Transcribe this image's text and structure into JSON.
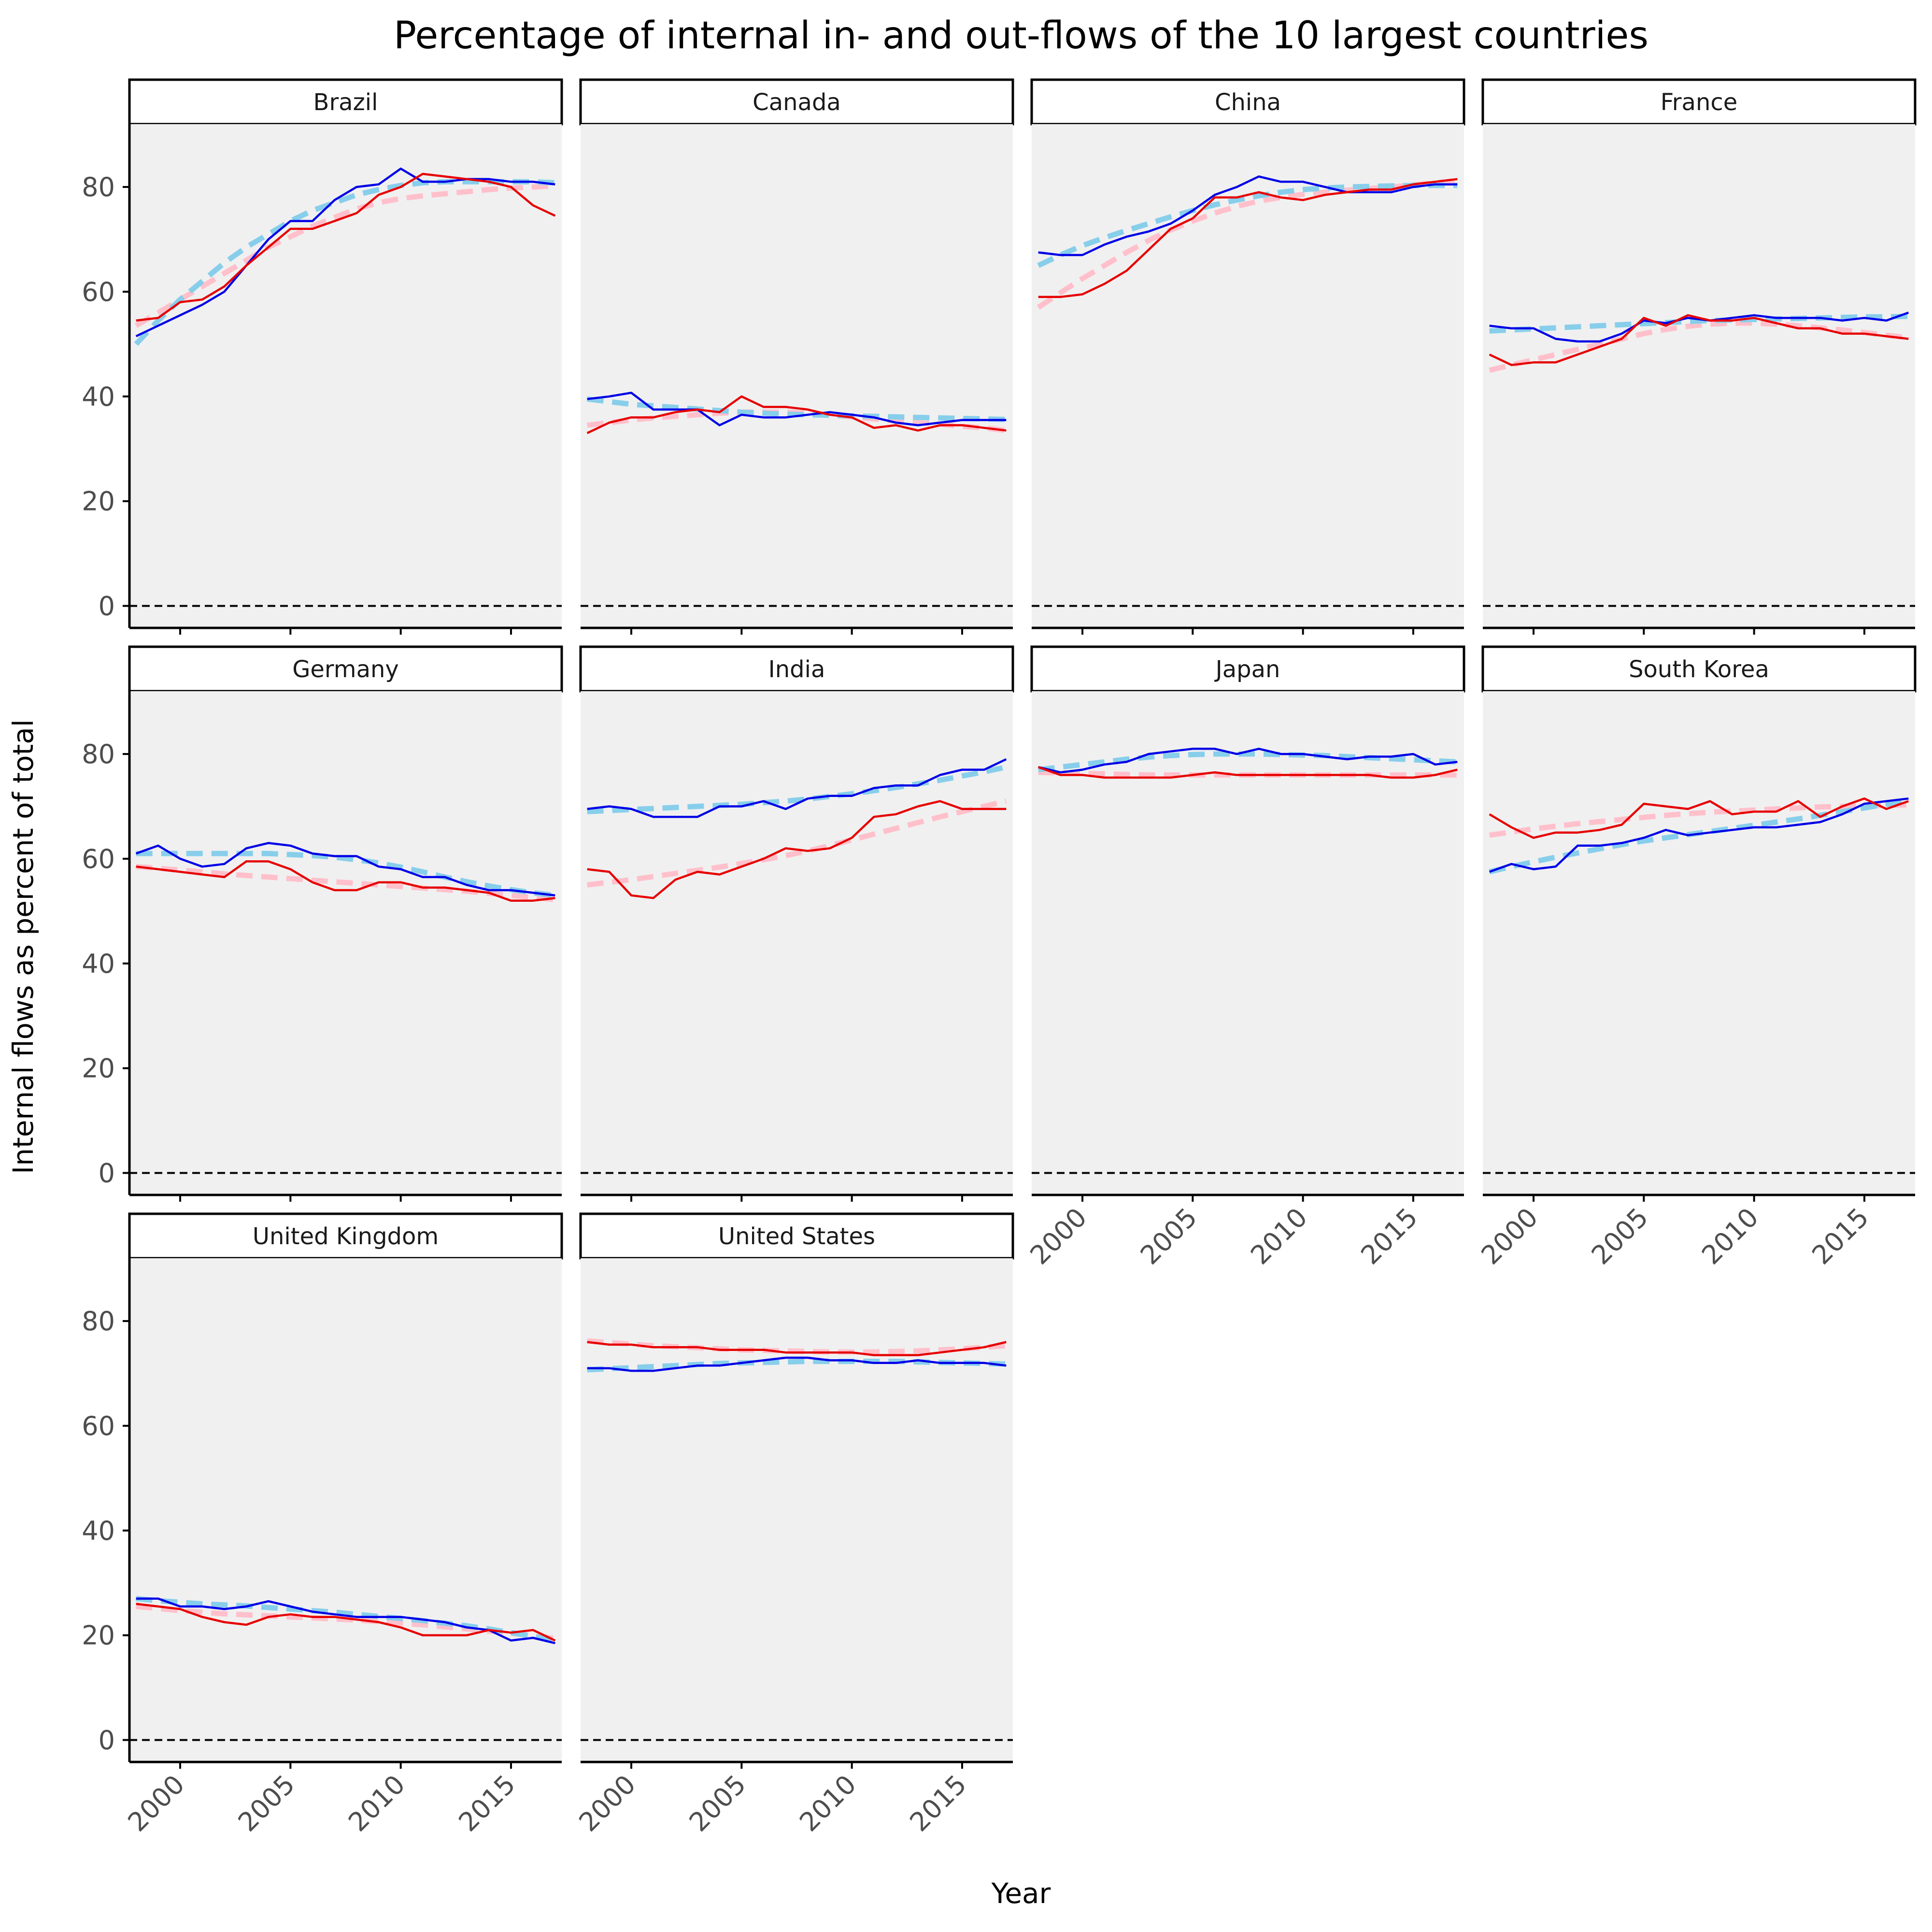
{
  "chart_data": {
    "type": "line",
    "title": "Percentage of internal in- and out-flows of the 10 largest countries",
    "xlabel": "Year",
    "ylabel": "Internal flows as percent of total",
    "xlim": [
      1997.7,
      2017.3
    ],
    "ylim": [
      -4.2,
      92
    ],
    "x_ticks": [
      2000,
      2005,
      2010,
      2015
    ],
    "y_ticks": [
      0,
      20,
      40,
      60,
      80
    ],
    "reference_line": {
      "y": 0,
      "style": "dashed",
      "color": "#000000"
    },
    "colors": {
      "series_blue": "#0000e6",
      "series_red": "#e60000",
      "trend_blue": "#87ceeb",
      "trend_red": "#ffc0cb",
      "panel_bg": "#f0f0f0",
      "zero_line": "#000000"
    },
    "years": [
      1998,
      1999,
      2000,
      2001,
      2002,
      2003,
      2004,
      2005,
      2006,
      2007,
      2008,
      2009,
      2010,
      2011,
      2012,
      2013,
      2014,
      2015,
      2016,
      2017
    ],
    "panels": [
      {
        "name": "Brazil",
        "blue": [
          51.5,
          53.5,
          55.5,
          57.5,
          60,
          65,
          70,
          73.5,
          73.5,
          77.5,
          80,
          80.5,
          83.5,
          81,
          81,
          81.5,
          81.5,
          81,
          81,
          80.5
        ],
        "red": [
          54.5,
          55,
          58,
          58.5,
          61,
          65,
          68.5,
          72,
          72,
          73.5,
          75,
          78.5,
          80,
          82.5,
          82,
          81.5,
          81,
          80,
          76.5,
          74.5
        ],
        "blue_trend": [
          50,
          54.5,
          58.5,
          62,
          65.5,
          68.5,
          71,
          73.5,
          75.5,
          77,
          78.5,
          79.5,
          80.3,
          80.8,
          81,
          81,
          81,
          81,
          81,
          80.8
        ],
        "red_trend": [
          53.5,
          56,
          58.5,
          61,
          63.5,
          66,
          68.5,
          70.5,
          72.5,
          74.2,
          75.8,
          77,
          77.8,
          78.3,
          78.7,
          79.1,
          79.5,
          79.8,
          80,
          80.2
        ]
      },
      {
        "name": "Canada",
        "blue": [
          39.5,
          40,
          40.7,
          37.5,
          37.5,
          37.5,
          34.5,
          36.5,
          36,
          36,
          36.5,
          37,
          36.5,
          36,
          35,
          34.5,
          35,
          35.5,
          35.5,
          35.5
        ],
        "red": [
          33,
          35,
          36,
          36,
          37,
          37.5,
          37,
          40,
          38,
          38,
          37.5,
          36.5,
          36,
          34,
          34.5,
          33.5,
          34.5,
          34.5,
          34,
          33.5
        ],
        "blue_trend": [
          39.5,
          39,
          38.5,
          38.2,
          37.9,
          37.6,
          37.3,
          37,
          36.8,
          36.6,
          36.5,
          36.4,
          36.3,
          36.2,
          36.1,
          36,
          35.9,
          35.8,
          35.7,
          35.6
        ],
        "red_trend": [
          34.5,
          35,
          35.5,
          35.9,
          36.2,
          36.5,
          36.8,
          37,
          37,
          37,
          36.8,
          36.5,
          36.1,
          35.7,
          35.3,
          35,
          34.7,
          34.3,
          34,
          33.5
        ]
      },
      {
        "name": "China",
        "blue": [
          67.5,
          67,
          67,
          69,
          70.5,
          71.5,
          73,
          75.5,
          78.5,
          80,
          82,
          81,
          81,
          80,
          79,
          79,
          79,
          80,
          80.5,
          80.5
        ],
        "red": [
          59,
          59,
          59.5,
          61.5,
          64,
          68,
          72,
          74,
          78,
          78,
          79,
          78,
          77.5,
          78.5,
          79,
          79.5,
          79.5,
          80.5,
          81,
          81.5
        ],
        "blue_trend": [
          65,
          67,
          68.8,
          70.3,
          71.7,
          73,
          74.3,
          75.5,
          76.6,
          77.5,
          78.3,
          79,
          79.5,
          79.8,
          80,
          80.1,
          80.2,
          80.3,
          80.3,
          80.3
        ],
        "red_trend": [
          57,
          59.8,
          62.5,
          65,
          67.5,
          69.8,
          71.8,
          73.5,
          75,
          76.3,
          77.3,
          78,
          78.6,
          79,
          79.4,
          79.7,
          80,
          80.4,
          80.8,
          81.2
        ]
      },
      {
        "name": "France",
        "blue": [
          53.5,
          53,
          53,
          51,
          50.5,
          50.5,
          52,
          54.5,
          54,
          55,
          54.5,
          55,
          55.5,
          55,
          55,
          55,
          54.5,
          55,
          54.5,
          56
        ],
        "red": [
          48,
          46,
          46.5,
          46.5,
          48,
          49.5,
          51,
          55,
          53.5,
          55.5,
          54.5,
          54.5,
          55,
          54,
          53,
          53,
          52,
          52,
          51.5,
          51
        ],
        "blue_trend": [
          52.5,
          52.7,
          52.9,
          53.1,
          53.3,
          53.5,
          53.7,
          53.9,
          54.1,
          54.3,
          54.5,
          54.6,
          54.7,
          54.8,
          54.9,
          55,
          55.1,
          55.2,
          55.2,
          55.3
        ],
        "red_trend": [
          45,
          46,
          47,
          48,
          49,
          50,
          51,
          52,
          52.8,
          53.4,
          53.8,
          54,
          54,
          53.8,
          53.5,
          53.1,
          52.7,
          52.2,
          51.7,
          51.2
        ]
      },
      {
        "name": "Germany",
        "blue": [
          61,
          62.5,
          60,
          58.5,
          59,
          62,
          63,
          62.5,
          61,
          60.5,
          60.5,
          58.5,
          58,
          56.5,
          56.5,
          55,
          54,
          54,
          53.5,
          53
        ],
        "red": [
          58.5,
          58,
          57.5,
          57,
          56.5,
          59.5,
          59.5,
          58,
          55.5,
          54,
          54,
          55.5,
          55.5,
          54.5,
          54.5,
          54,
          53.5,
          52,
          52,
          52.5
        ],
        "blue_trend": [
          61,
          61,
          61,
          61,
          61,
          61,
          61,
          60.8,
          60.6,
          60.3,
          59.8,
          59.2,
          58.4,
          57.5,
          56.5,
          55.6,
          54.8,
          54.1,
          53.5,
          53
        ],
        "red_trend": [
          58.5,
          58.2,
          57.8,
          57.5,
          57.1,
          56.8,
          56.5,
          56.2,
          55.9,
          55.6,
          55.3,
          55,
          54.7,
          54.4,
          54.1,
          53.8,
          53.4,
          53,
          52.6,
          52.2
        ]
      },
      {
        "name": "India",
        "blue": [
          69.5,
          70,
          69.5,
          68,
          68,
          68,
          70,
          70,
          71,
          69.5,
          71.5,
          72,
          72,
          73.5,
          74,
          74,
          76,
          77,
          77,
          79
        ],
        "red": [
          58,
          57.5,
          53,
          52.5,
          56,
          57.5,
          57,
          58.5,
          60,
          62,
          61.5,
          62,
          64,
          68,
          68.5,
          70,
          71,
          69.5,
          69.5,
          69.5
        ],
        "blue_trend": [
          69,
          69.2,
          69.4,
          69.6,
          69.8,
          70,
          70.2,
          70.4,
          70.7,
          71,
          71.4,
          71.9,
          72.4,
          73,
          73.6,
          74.3,
          75,
          75.8,
          76.6,
          77.5
        ],
        "red_trend": [
          55,
          55.5,
          56,
          56.6,
          57.2,
          57.8,
          58.4,
          59.1,
          59.8,
          60.6,
          61.5,
          62.5,
          63.6,
          64.7,
          65.8,
          66.9,
          68,
          69,
          70,
          71
        ]
      },
      {
        "name": "Japan",
        "blue": [
          77.5,
          76.5,
          77,
          78,
          78.5,
          80,
          80.5,
          81,
          81,
          80,
          81,
          80,
          80,
          79.5,
          79,
          79.5,
          79.5,
          80,
          78,
          78.5
        ],
        "red": [
          77.5,
          76,
          76,
          75.5,
          75.5,
          75.5,
          75.5,
          76,
          76.5,
          76,
          76,
          76,
          76,
          76,
          76,
          76,
          75.5,
          75.5,
          76,
          77
        ],
        "blue_trend": [
          77,
          77.5,
          78,
          78.5,
          79,
          79.4,
          79.7,
          79.9,
          80,
          80,
          80,
          79.9,
          79.8,
          79.7,
          79.5,
          79.3,
          79.1,
          78.9,
          78.7,
          78.5
        ],
        "red_trend": [
          76.5,
          76.4,
          76.3,
          76.2,
          76.1,
          76,
          76,
          76,
          76,
          76,
          76,
          76,
          76,
          76,
          76,
          76,
          76,
          76,
          76,
          76
        ]
      },
      {
        "name": "South Korea",
        "blue": [
          57.5,
          59,
          58,
          58.5,
          62.5,
          62.5,
          63,
          64,
          65.5,
          64.5,
          65,
          65.5,
          66,
          66,
          66.5,
          67,
          68.5,
          70.5,
          71,
          71.5
        ],
        "red": [
          68.5,
          66,
          64,
          65,
          65,
          65.5,
          66.5,
          70.5,
          70,
          69.5,
          71,
          68.5,
          69,
          69,
          71,
          68,
          70,
          71.5,
          69.5,
          71
        ],
        "blue_trend": [
          57.5,
          58.5,
          59.4,
          60.3,
          61.1,
          61.9,
          62.7,
          63.4,
          64,
          64.6,
          65.2,
          65.8,
          66.4,
          67,
          67.6,
          68.3,
          69,
          69.7,
          70.4,
          71
        ],
        "red_trend": [
          64.5,
          65.1,
          65.7,
          66.2,
          66.7,
          67.1,
          67.5,
          67.9,
          68.3,
          68.6,
          68.9,
          69.1,
          69.3,
          69.5,
          69.7,
          69.9,
          70,
          70.1,
          70.2,
          70.3
        ]
      },
      {
        "name": "United Kingdom",
        "blue": [
          27,
          27,
          25.5,
          25.5,
          25,
          25.5,
          26.5,
          25.5,
          24.5,
          24,
          23.5,
          23.5,
          23.5,
          23,
          22.5,
          21.5,
          21,
          19,
          19.5,
          18.5
        ],
        "red": [
          26,
          25.5,
          25,
          23.5,
          22.5,
          22,
          23.5,
          24,
          23.5,
          23.5,
          23,
          22.5,
          21.5,
          20,
          20,
          20,
          21,
          20.5,
          21,
          19
        ],
        "blue_trend": [
          27,
          26.6,
          26.3,
          26,
          25.8,
          25.6,
          25.3,
          25,
          24.7,
          24.4,
          24,
          23.6,
          23.2,
          22.8,
          22.3,
          21.8,
          21.2,
          20.5,
          19.8,
          19
        ],
        "red_trend": [
          25.5,
          25.1,
          24.7,
          24.4,
          24.1,
          23.9,
          23.7,
          23.5,
          23.3,
          23.1,
          22.9,
          22.6,
          22.3,
          22,
          21.6,
          21.2,
          20.8,
          20.4,
          19.9,
          19.4
        ]
      },
      {
        "name": "United States",
        "blue": [
          71,
          71,
          70.5,
          70.5,
          71,
          71.5,
          71.5,
          72,
          72.5,
          73,
          73,
          72.5,
          72.5,
          72,
          72,
          72.5,
          72,
          72,
          72,
          71.5
        ],
        "red": [
          76,
          75.5,
          75.5,
          75,
          75,
          75,
          74.5,
          74.5,
          74.5,
          74,
          74,
          74,
          74,
          73.5,
          73.5,
          73.5,
          74,
          74.5,
          75,
          76
        ],
        "blue_trend": [
          70.7,
          70.9,
          71.1,
          71.3,
          71.5,
          71.7,
          71.9,
          72,
          72.1,
          72.2,
          72.3,
          72.3,
          72.3,
          72.3,
          72.3,
          72.2,
          72.1,
          72,
          71.9,
          71.8
        ],
        "red_trend": [
          76.2,
          75.9,
          75.6,
          75.3,
          75.1,
          74.9,
          74.7,
          74.5,
          74.4,
          74.3,
          74.2,
          74.1,
          74.1,
          74.1,
          74.2,
          74.3,
          74.5,
          74.7,
          75,
          75.3
        ]
      }
    ]
  }
}
